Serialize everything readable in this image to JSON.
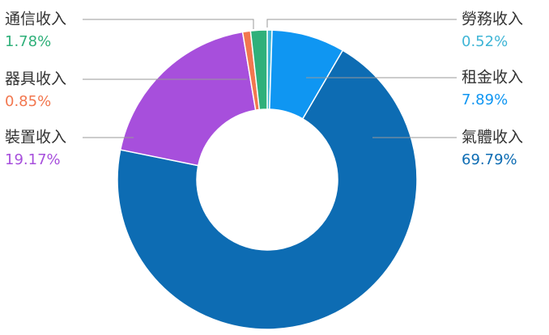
{
  "chart_data": {
    "type": "donut",
    "categories": [
      "勞務收入",
      "租金收入",
      "氣體收入",
      "裝置收入",
      "器具收入",
      "通信收入"
    ],
    "values": [
      0.52,
      7.89,
      69.79,
      19.17,
      0.85,
      1.78
    ],
    "value_labels": [
      "0.52%",
      "7.89%",
      "69.79%",
      "19.17%",
      "0.85%",
      "1.78%"
    ],
    "colors": [
      "#3fb5d6",
      "#0f96f2",
      "#0d6cb3",
      "#a74fdc",
      "#f2774f",
      "#2fb07a"
    ]
  }
}
